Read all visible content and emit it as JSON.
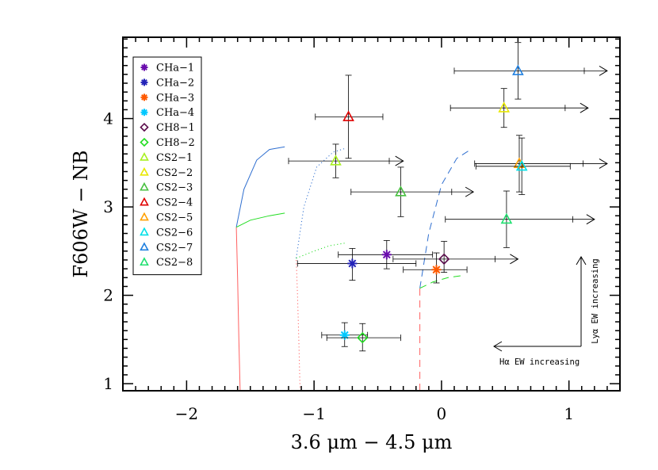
{
  "chart_data": {
    "type": "scatter",
    "xlabel": "3.6 μm − 4.5 μm",
    "ylabel": "F606W − NB",
    "xlim": [
      -2.5,
      1.4
    ],
    "ylim": [
      0.92,
      4.92
    ],
    "xticks": [
      -2,
      -1,
      0,
      1
    ],
    "xtick_labels": [
      "−2",
      "−1",
      "0",
      "1"
    ],
    "yticks": [
      1,
      2,
      3,
      4
    ],
    "ytick_labels": [
      "1",
      "2",
      "3",
      "4"
    ],
    "grid": false,
    "legend_position": "top-left",
    "series": [
      {
        "name": "CHa−1",
        "color": "#6a0dad",
        "marker": "asterisk",
        "x": -0.43,
        "y": 2.46,
        "xerr": [
          0.38,
          0.36
        ],
        "yerr": [
          0.16,
          0.16
        ]
      },
      {
        "name": "CHa−2",
        "color": "#2424b8",
        "marker": "asterisk",
        "x": -0.7,
        "y": 2.36,
        "xerr": [
          0.43,
          0.5
        ],
        "yerr": [
          0.19,
          0.17
        ]
      },
      {
        "name": "CHa−3",
        "color": "#ff5a00",
        "marker": "asterisk",
        "x": -0.04,
        "y": 2.29,
        "xerr": [
          0.26,
          0.24
        ],
        "yerr": [
          0.15,
          0.19
        ]
      },
      {
        "name": "CHa−4",
        "color": "#00c8ff",
        "marker": "asterisk",
        "x": -0.76,
        "y": 1.55,
        "xerr": [
          0.18,
          0.18
        ],
        "yerr": [
          0.13,
          0.14
        ]
      },
      {
        "name": "CH8−1",
        "color": "#5a0a4a",
        "marker": "diamond",
        "x": 0.02,
        "y": 2.41,
        "xerr": [
          0.4,
          0.4
        ],
        "yerr": [
          0.15,
          0.2
        ],
        "arrow": "right",
        "arrow_to": 0.6
      },
      {
        "name": "CH8−2",
        "color": "#22dd22",
        "marker": "diamond",
        "x": -0.62,
        "y": 1.52,
        "xerr": [
          0.28,
          0.3
        ],
        "yerr": [
          0.15,
          0.16
        ]
      },
      {
        "name": "CS2−1",
        "color": "#a8f020",
        "marker": "triangle",
        "x": -0.83,
        "y": 3.52,
        "xerr": [
          0.37,
          0.42
        ],
        "yerr": [
          0.19,
          0.19
        ],
        "arrow": "right",
        "arrow_to": -0.3
      },
      {
        "name": "CS2−2",
        "color": "#e8e800",
        "marker": "triangle",
        "x": 0.49,
        "y": 4.12,
        "xerr": [
          0.42,
          0.48
        ],
        "yerr": [
          0.22,
          0.22
        ],
        "arrow": "right",
        "arrow_to": 1.15
      },
      {
        "name": "CS2−3",
        "color": "#48c040",
        "marker": "triangle",
        "x": -0.32,
        "y": 3.17,
        "xerr": [
          0.39,
          0.4
        ],
        "yerr": [
          0.28,
          0.28
        ],
        "arrow": "right",
        "arrow_to": 0.25
      },
      {
        "name": "CS2−4",
        "color": "#e00000",
        "marker": "triangle",
        "x": -0.73,
        "y": 4.02,
        "xerr": [
          0.26,
          0.27
        ],
        "yerr": [
          0.47,
          0.47
        ]
      },
      {
        "name": "CS2−5",
        "color": "#ffa000",
        "marker": "triangle",
        "x": 0.61,
        "y": 3.49,
        "xerr": [
          0.35,
          0.5
        ],
        "yerr": [
          0.32,
          0.32
        ],
        "arrow": "right",
        "arrow_to": 1.3
      },
      {
        "name": "CS2−6",
        "color": "#00e0e8",
        "marker": "triangle",
        "x": 0.63,
        "y": 3.46,
        "xerr": [
          0.36,
          0.38
        ],
        "yerr": [
          0.32,
          0.32
        ]
      },
      {
        "name": "CS2−7",
        "color": "#2080e0",
        "marker": "triangle",
        "x": 0.6,
        "y": 4.54,
        "xerr": [
          0.5,
          0.52
        ],
        "yerr": [
          0.32,
          0.32
        ],
        "arrow": "right",
        "arrow_to": 1.3
      },
      {
        "name": "CS2−8",
        "color": "#20e070",
        "marker": "triangle",
        "x": 0.51,
        "y": 2.86,
        "xerr": [
          0.48,
          0.52
        ],
        "yerr": [
          0.32,
          0.32
        ],
        "arrow": "right",
        "arrow_to": 1.2
      }
    ],
    "model_tracks": [
      {
        "color": "#ff6060",
        "dash": "solid",
        "points": [
          [
            -1.58,
            0.92
          ],
          [
            -1.59,
            1.5
          ],
          [
            -1.6,
            2.2
          ],
          [
            -1.61,
            2.77
          ]
        ]
      },
      {
        "color": "#2f6fd0",
        "dash": "solid",
        "points": [
          [
            -1.61,
            2.77
          ],
          [
            -1.55,
            3.2
          ],
          [
            -1.45,
            3.53
          ],
          [
            -1.35,
            3.65
          ],
          [
            -1.23,
            3.68
          ]
        ]
      },
      {
        "color": "#22dd22",
        "dash": "solid",
        "points": [
          [
            -1.61,
            2.77
          ],
          [
            -1.5,
            2.85
          ],
          [
            -1.35,
            2.9
          ],
          [
            -1.23,
            2.93
          ]
        ]
      },
      {
        "color": "#ff6060",
        "dash": "dotted",
        "points": [
          [
            -1.11,
            0.92
          ],
          [
            -1.12,
            1.5
          ],
          [
            -1.13,
            2.0
          ],
          [
            -1.14,
            2.42
          ]
        ]
      },
      {
        "color": "#2f6fd0",
        "dash": "dotted",
        "points": [
          [
            -1.14,
            2.42
          ],
          [
            -1.08,
            3.0
          ],
          [
            -0.98,
            3.45
          ],
          [
            -0.85,
            3.62
          ],
          [
            -0.76,
            3.66
          ]
        ]
      },
      {
        "color": "#22dd22",
        "dash": "dotted",
        "points": [
          [
            -1.14,
            2.42
          ],
          [
            -1.0,
            2.5
          ],
          [
            -0.88,
            2.56
          ],
          [
            -0.76,
            2.59
          ]
        ]
      },
      {
        "color": "#ff6060",
        "dash": "dashed",
        "points": [
          [
            -0.17,
            0.92
          ],
          [
            -0.17,
            1.5
          ],
          [
            -0.17,
            2.08
          ]
        ]
      },
      {
        "color": "#2f6fd0",
        "dash": "dashed",
        "points": [
          [
            -0.17,
            2.08
          ],
          [
            -0.1,
            2.7
          ],
          [
            0.0,
            3.25
          ],
          [
            0.12,
            3.55
          ],
          [
            0.24,
            3.66
          ]
        ]
      },
      {
        "color": "#22dd22",
        "dash": "dashed",
        "points": [
          [
            -0.17,
            2.08
          ],
          [
            -0.07,
            2.15
          ],
          [
            0.05,
            2.2
          ],
          [
            0.15,
            2.22
          ]
        ]
      }
    ],
    "annotations": {
      "ha_label": "Hα EW increasing",
      "lya_label": "Lyα EW increasing"
    }
  }
}
